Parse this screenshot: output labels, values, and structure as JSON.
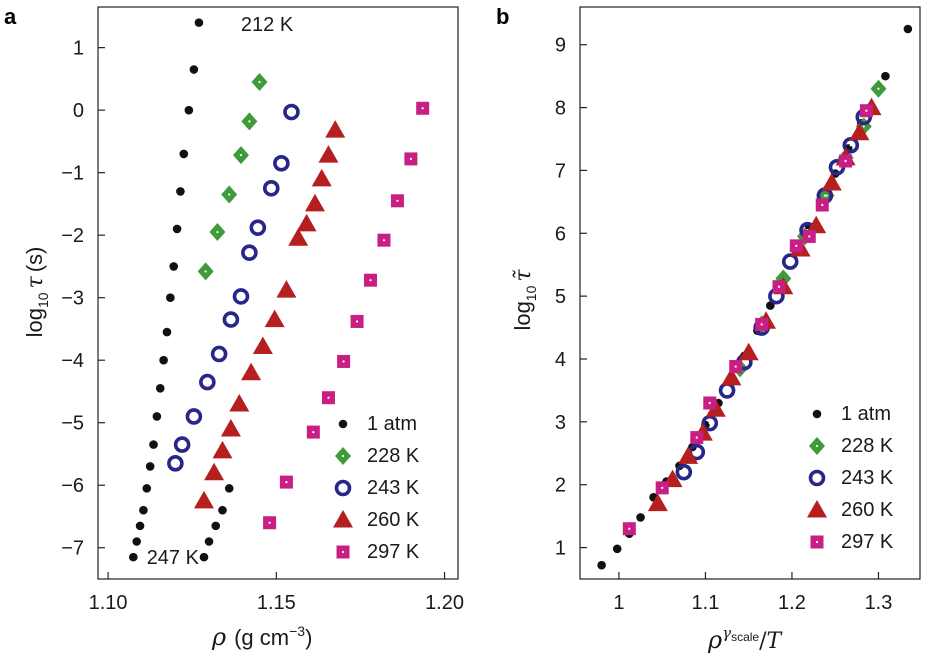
{
  "chart_data": [
    {
      "type": "scatter",
      "panel": "a",
      "xlabel": "ρ (g cm⁻³)",
      "ylabel": "log10 τ (s)",
      "xlim": [
        1.097,
        1.204
      ],
      "ylim": [
        -7.5,
        1.65
      ],
      "xticks": [
        1.1,
        1.15,
        1.2
      ],
      "xtick_labels": [
        "1.10",
        "1.15",
        "1.20"
      ],
      "yticks": [
        -7,
        -6,
        -5,
        -4,
        -3,
        -2,
        -1,
        0,
        1
      ],
      "ytick_labels": [
        "−7",
        "−6",
        "−5",
        "−4",
        "−3",
        "−2",
        "−1",
        "0",
        "1"
      ],
      "legend_position": "bottom-right",
      "annotations": [
        {
          "text": "212 K",
          "x": 1.1365,
          "y": 1.38
        },
        {
          "text": "247 K",
          "x": 1.1085,
          "y": -7.15
        }
      ],
      "series": [
        {
          "name": "1 atm",
          "marker": "dot",
          "color": "#111111",
          "x": [
            1.1075,
            1.1085,
            1.1095,
            1.1105,
            1.1115,
            1.1125,
            1.1135,
            1.1145,
            1.1155,
            1.1165,
            1.1175,
            1.1185,
            1.1195,
            1.1205,
            1.1215,
            1.1225,
            1.124,
            1.1255,
            1.127,
            1.1285,
            1.13,
            1.132,
            1.134,
            1.136
          ],
          "y": [
            -7.15,
            -6.9,
            -6.65,
            -6.4,
            -6.05,
            -5.7,
            -5.35,
            -4.9,
            -4.45,
            -4.0,
            -3.55,
            -3.0,
            -2.5,
            -1.9,
            -1.3,
            -0.7,
            0.0,
            0.65,
            1.4,
            -7.15,
            -6.9,
            -6.65,
            -6.4,
            -6.05
          ]
        },
        {
          "name": "228 K",
          "marker": "diamond",
          "color": "#3f9a3a",
          "x": [
            1.129,
            1.1325,
            1.136,
            1.1395,
            1.142,
            1.145
          ],
          "y": [
            -2.58,
            -1.95,
            -1.35,
            -0.72,
            -0.18,
            0.45
          ]
        },
        {
          "name": "243 K",
          "marker": "ring",
          "color": "#27278a",
          "x": [
            1.12,
            1.122,
            1.1255,
            1.1295,
            1.133,
            1.1365,
            1.1395,
            1.142,
            1.1445,
            1.1485,
            1.1515,
            1.1545
          ],
          "y": [
            -5.65,
            -5.35,
            -4.9,
            -4.35,
            -3.9,
            -3.35,
            -2.98,
            -2.28,
            -1.88,
            -1.25,
            -0.85,
            -0.03
          ]
        },
        {
          "name": "260 K",
          "marker": "triangle",
          "color": "#b51f1f",
          "x": [
            1.1285,
            1.1315,
            1.134,
            1.1365,
            1.139,
            1.1425,
            1.146,
            1.1495,
            1.153,
            1.1565,
            1.159,
            1.1615,
            1.1635,
            1.1655,
            1.1675
          ],
          "y": [
            -6.25,
            -5.8,
            -5.45,
            -5.1,
            -4.7,
            -4.2,
            -3.78,
            -3.35,
            -2.88,
            -2.05,
            -1.82,
            -1.5,
            -1.1,
            -0.72,
            -0.32
          ]
        },
        {
          "name": "297 K",
          "marker": "square",
          "color": "#c81f85",
          "x": [
            1.148,
            1.153,
            1.161,
            1.1655,
            1.17,
            1.174,
            1.178,
            1.182,
            1.186,
            1.19,
            1.1935
          ],
          "y": [
            -6.6,
            -5.95,
            -5.15,
            -4.6,
            -4.02,
            -3.38,
            -2.72,
            -2.08,
            -1.45,
            -0.78,
            0.03
          ]
        }
      ]
    },
    {
      "type": "scatter",
      "panel": "b",
      "xlabel": "ρ^γscale/T",
      "ylabel": "log10 τ̃",
      "xlim": [
        0.955,
        1.348
      ],
      "ylim": [
        0.5,
        9.6
      ],
      "xticks": [
        1.0,
        1.1,
        1.2,
        1.3
      ],
      "xtick_labels": [
        "1",
        "1.1",
        "1.2",
        "1.3"
      ],
      "yticks": [
        1,
        2,
        3,
        4,
        5,
        6,
        7,
        8,
        9
      ],
      "ytick_labels": [
        "1",
        "2",
        "3",
        "4",
        "5",
        "6",
        "7",
        "8",
        "9"
      ],
      "legend_position": "bottom-right",
      "series": [
        {
          "name": "1 atm",
          "marker": "dot",
          "color": "#111111",
          "x": [
            0.98,
            0.998,
            1.012,
            1.025,
            1.04,
            1.055,
            1.07,
            1.085,
            1.1,
            1.115,
            1.13,
            1.145,
            1.16,
            1.175,
            1.19,
            1.205,
            1.22,
            1.235,
            1.25,
            1.265,
            1.28,
            1.29,
            1.308,
            1.334
          ],
          "y": [
            0.72,
            0.98,
            1.22,
            1.48,
            1.8,
            2.05,
            2.3,
            2.6,
            2.95,
            3.3,
            3.7,
            4.05,
            4.45,
            4.85,
            5.25,
            5.7,
            6.1,
            6.55,
            6.95,
            7.35,
            7.75,
            8.0,
            8.5,
            9.25
          ]
        },
        {
          "name": "228 K",
          "marker": "diamond",
          "color": "#3f9a3a",
          "x": [
            1.14,
            1.165,
            1.19,
            1.215,
            1.24,
            1.262,
            1.283,
            1.3
          ],
          "y": [
            3.85,
            4.55,
            5.28,
            5.95,
            6.6,
            7.2,
            7.7,
            8.3
          ]
        },
        {
          "name": "243 K",
          "marker": "ring",
          "color": "#27278a",
          "x": [
            1.075,
            1.09,
            1.105,
            1.125,
            1.145,
            1.165,
            1.182,
            1.198,
            1.218,
            1.238,
            1.252,
            1.268,
            1.283
          ],
          "y": [
            2.2,
            2.52,
            2.98,
            3.5,
            3.95,
            4.5,
            5.0,
            5.55,
            6.05,
            6.6,
            7.05,
            7.4,
            7.85
          ]
        },
        {
          "name": "260 K",
          "marker": "triangle",
          "color": "#b51f1f",
          "x": [
            1.045,
            1.062,
            1.08,
            1.097,
            1.112,
            1.13,
            1.15,
            1.17,
            1.19,
            1.21,
            1.228,
            1.246,
            1.262,
            1.278,
            1.292
          ],
          "y": [
            1.7,
            2.08,
            2.45,
            2.82,
            3.2,
            3.7,
            4.1,
            4.6,
            5.15,
            5.75,
            6.12,
            6.8,
            7.2,
            7.6,
            8.0
          ]
        },
        {
          "name": "297 K",
          "marker": "square",
          "color": "#c81f85",
          "x": [
            1.012,
            1.05,
            1.09,
            1.105,
            1.135,
            1.165,
            1.185,
            1.205,
            1.22,
            1.235,
            1.262,
            1.286
          ],
          "y": [
            1.3,
            1.95,
            2.75,
            3.3,
            3.88,
            4.55,
            5.15,
            5.8,
            5.95,
            6.45,
            7.15,
            7.95
          ]
        }
      ]
    }
  ]
}
